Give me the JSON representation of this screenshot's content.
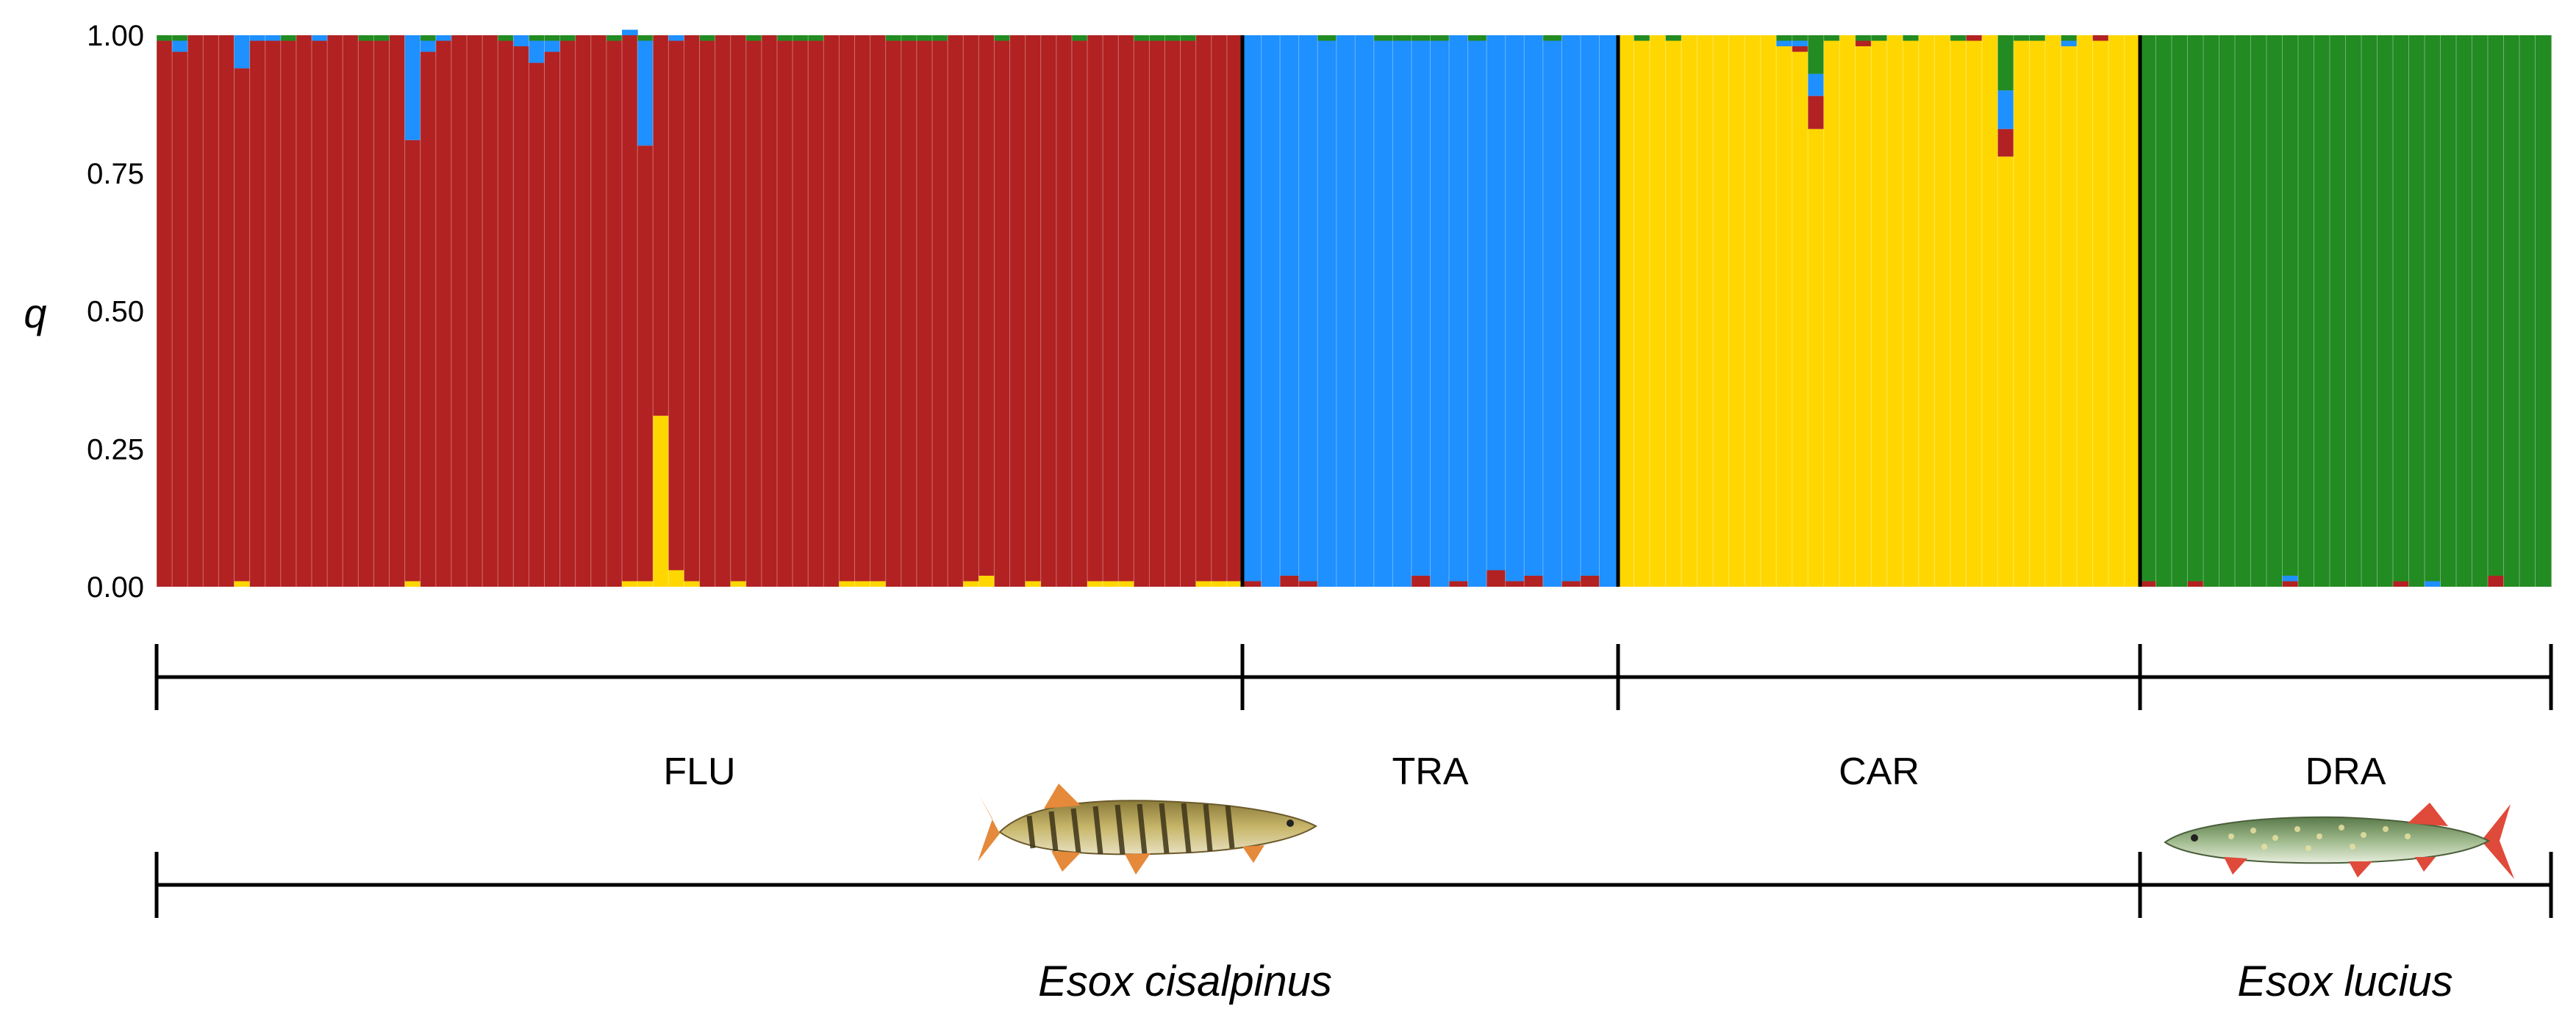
{
  "chart_data": {
    "type": "bar",
    "stacked": true,
    "ylabel": "q",
    "ylim": [
      0,
      1
    ],
    "yticks": [
      "0.00",
      "0.25",
      "0.50",
      "0.75",
      "1.00"
    ],
    "cluster_colors": {
      "red": "#B22222",
      "blue": "#1E90FF",
      "yellow": "#FFD700",
      "green": "#228B22"
    },
    "stack_order": [
      "yellow",
      "red",
      "blue",
      "green"
    ],
    "series": [
      {
        "name": "",
        "color": "#B22222",
        "values": [
          0.99,
          0.97,
          1.0,
          1.0,
          1.0,
          0.93,
          0.99,
          0.99,
          0.99,
          1.0,
          0.99,
          1.0,
          1.0,
          0.99,
          0.99,
          1.0,
          0.8,
          0.97,
          0.99,
          1.0,
          1.0,
          1.0,
          0.99,
          0.98,
          0.95,
          0.97,
          0.99,
          1.0,
          1.0,
          0.99,
          0.99,
          0.79,
          0.69,
          0.96,
          0.99,
          0.99,
          1.0,
          0.99,
          0.99,
          1.0,
          0.99,
          0.99,
          0.99,
          1.0,
          0.99,
          0.99,
          0.99,
          0.99,
          0.99,
          0.99,
          0.99,
          1.0,
          0.99,
          0.98,
          0.99,
          1.0,
          0.99,
          1.0,
          1.0,
          0.99,
          0.99,
          0.99,
          0.99,
          0.99,
          0.99,
          0.99,
          0.99,
          0.99,
          0.99,
          0.99,
          0.01,
          0.0,
          0.02,
          0.01,
          0.0,
          0.0,
          0.0,
          0.0,
          0.0,
          0.02,
          0.0,
          0.01,
          0.0,
          0.03,
          0.01,
          0.02,
          0.0,
          0.01,
          0.02,
          0.0,
          0.0,
          0.0,
          0.0,
          0.0,
          0.0,
          0.0,
          0.0,
          0.0,
          0.0,
          0.0,
          0.0,
          0.01,
          0.06,
          0.0,
          0.0,
          0.01,
          0.0,
          0.0,
          0.0,
          0.0,
          0.0,
          0.0,
          0.01,
          0.0,
          0.05,
          0.0,
          0.0,
          0.0,
          0.0,
          0.0,
          0.01,
          0.0,
          0.0,
          0.01,
          0.0,
          0.0,
          0.01,
          0.0,
          0.0,
          0.0,
          0.0,
          0.0,
          0.01,
          0.0,
          0.0,
          0.0,
          0.0,
          0.0,
          0.0,
          0.01,
          0.0,
          0.0,
          0.0,
          0.0,
          0.0,
          0.02,
          0.0,
          0.0,
          0.0
        ]
      },
      {
        "name": "",
        "color": "#1E90FF",
        "values": [
          0.0,
          0.02,
          0.0,
          0.0,
          0.0,
          0.06,
          0.01,
          0.01,
          0.0,
          0.0,
          0.01,
          0.0,
          0.0,
          0.0,
          0.0,
          0.0,
          0.19,
          0.02,
          0.01,
          0.0,
          0.0,
          0.0,
          0.0,
          0.02,
          0.04,
          0.02,
          0.0,
          0.0,
          0.0,
          0.0,
          0.01,
          0.19,
          0.0,
          0.01,
          0.0,
          0.0,
          0.0,
          0.0,
          0.0,
          0.0,
          0.0,
          0.0,
          0.0,
          0.0,
          0.0,
          0.0,
          0.0,
          0.0,
          0.0,
          0.0,
          0.0,
          0.0,
          0.0,
          0.0,
          0.0,
          0.0,
          0.0,
          0.0,
          0.0,
          0.0,
          0.0,
          0.0,
          0.0,
          0.0,
          0.0,
          0.0,
          0.0,
          0.0,
          0.0,
          0.0,
          0.99,
          1.0,
          0.98,
          0.99,
          0.99,
          1.0,
          1.0,
          0.99,
          0.99,
          0.97,
          0.99,
          0.99,
          0.99,
          0.97,
          0.99,
          0.98,
          0.99,
          0.99,
          0.98,
          1.0,
          0.0,
          0.0,
          0.0,
          0.0,
          0.0,
          0.0,
          0.0,
          0.0,
          0.0,
          0.0,
          0.01,
          0.01,
          0.04,
          0.0,
          0.0,
          0.0,
          0.0,
          0.0,
          0.0,
          0.0,
          0.0,
          0.0,
          0.0,
          0.0,
          0.07,
          0.0,
          0.0,
          0.0,
          0.01,
          0.0,
          0.0,
          0.0,
          0.0,
          0.0,
          0.0,
          0.0,
          0.0,
          0.0,
          0.0,
          0.0,
          0.0,
          0.0,
          0.01,
          0.0,
          0.0,
          0.0,
          0.0,
          0.0,
          0.0,
          0.0,
          0.0,
          0.01,
          0.0,
          0.0,
          0.0,
          0.0,
          0.0,
          0.0,
          0.0
        ]
      },
      {
        "name": "",
        "color": "#FFD700",
        "values": [
          0.0,
          0.0,
          0.0,
          0.0,
          0.0,
          0.01,
          0.0,
          0.0,
          0.0,
          0.0,
          0.0,
          0.0,
          0.0,
          0.0,
          0.0,
          0.0,
          0.01,
          0.0,
          0.0,
          0.0,
          0.0,
          0.0,
          0.0,
          0.0,
          0.0,
          0.0,
          0.0,
          0.0,
          0.0,
          0.0,
          0.01,
          0.01,
          0.31,
          0.03,
          0.01,
          0.0,
          0.0,
          0.01,
          0.0,
          0.0,
          0.0,
          0.0,
          0.0,
          0.0,
          0.01,
          0.01,
          0.01,
          0.0,
          0.0,
          0.0,
          0.0,
          0.0,
          0.01,
          0.02,
          0.0,
          0.0,
          0.01,
          0.0,
          0.0,
          0.0,
          0.01,
          0.01,
          0.01,
          0.0,
          0.0,
          0.0,
          0.0,
          0.01,
          0.01,
          0.01,
          0.0,
          0.0,
          0.0,
          0.0,
          0.0,
          0.0,
          0.0,
          0.0,
          0.0,
          0.0,
          0.0,
          0.0,
          0.0,
          0.0,
          0.0,
          0.0,
          0.0,
          0.0,
          0.0,
          0.0,
          1.0,
          0.99,
          1.0,
          0.99,
          1.0,
          1.0,
          1.0,
          1.0,
          1.0,
          1.0,
          0.98,
          0.97,
          0.83,
          0.99,
          1.0,
          0.98,
          0.99,
          1.0,
          0.99,
          1.0,
          1.0,
          0.99,
          0.99,
          1.0,
          0.78,
          0.99,
          0.99,
          1.0,
          0.98,
          1.0,
          0.99,
          1.0,
          1.0,
          0.0,
          0.0,
          0.0,
          0.0,
          0.0,
          0.0,
          0.0,
          0.0,
          0.0,
          0.0,
          0.0,
          0.0,
          0.0,
          0.0,
          0.0,
          0.0,
          0.0,
          0.0,
          0.0,
          0.0,
          0.0,
          0.0,
          0.0,
          0.0,
          0.0,
          0.0
        ]
      },
      {
        "name": "",
        "color": "#228B22",
        "values": [
          0.01,
          0.01,
          0.0,
          0.0,
          0.0,
          0.0,
          0.0,
          0.0,
          0.01,
          0.0,
          0.0,
          0.0,
          0.0,
          0.01,
          0.01,
          0.0,
          0.0,
          0.01,
          0.0,
          0.0,
          0.0,
          0.0,
          0.01,
          0.0,
          0.01,
          0.01,
          0.01,
          0.0,
          0.0,
          0.01,
          0.0,
          0.01,
          0.0,
          0.0,
          0.0,
          0.01,
          0.0,
          0.0,
          0.01,
          0.0,
          0.01,
          0.01,
          0.01,
          0.0,
          0.0,
          0.0,
          0.0,
          0.01,
          0.01,
          0.01,
          0.01,
          0.0,
          0.0,
          0.0,
          0.01,
          0.0,
          0.0,
          0.0,
          0.0,
          0.01,
          0.0,
          0.0,
          0.0,
          0.01,
          0.01,
          0.01,
          0.01,
          0.0,
          0.0,
          0.0,
          0.0,
          0.0,
          0.0,
          0.0,
          0.01,
          0.0,
          0.0,
          0.01,
          0.01,
          0.01,
          0.01,
          0.0,
          0.01,
          0.0,
          0.0,
          0.0,
          0.01,
          0.0,
          0.0,
          0.0,
          0.0,
          0.01,
          0.0,
          0.01,
          0.0,
          0.0,
          0.0,
          0.0,
          0.0,
          0.0,
          0.01,
          0.01,
          0.07,
          0.01,
          0.0,
          0.01,
          0.01,
          0.0,
          0.01,
          0.0,
          0.0,
          0.01,
          0.0,
          0.0,
          0.1,
          0.01,
          0.01,
          0.0,
          0.01,
          0.0,
          0.0,
          0.0,
          0.0,
          0.99,
          1.0,
          1.0,
          0.99,
          1.0,
          1.0,
          1.0,
          1.0,
          1.0,
          0.98,
          1.0,
          1.0,
          1.0,
          1.0,
          1.0,
          1.0,
          0.99,
          1.0,
          0.99,
          1.0,
          1.0,
          1.0,
          0.98,
          1.0,
          1.0,
          1.0
        ]
      }
    ],
    "groups": [
      {
        "label": "FLU",
        "count": 70
      },
      {
        "label": "TRA",
        "count": 20
      },
      {
        "label": "CAR",
        "count": 33
      },
      {
        "label": "DRA",
        "count": 26
      }
    ],
    "species": [
      {
        "name": "Esox cisalpinus",
        "spans_groups": [
          "FLU",
          "TRA",
          "CAR"
        ],
        "icon": "striped-pike-fish-icon"
      },
      {
        "name": "Esox lucius",
        "spans_groups": [
          "DRA"
        ],
        "icon": "northern-pike-fish-icon"
      }
    ],
    "grid": false,
    "legend": "none"
  }
}
